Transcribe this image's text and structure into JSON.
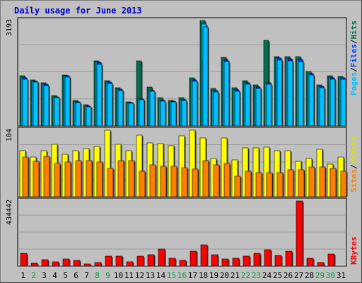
{
  "title": "Daily usage for June 2013",
  "colors": {
    "hits": "#007050",
    "files": "#00c0ff",
    "pages": "#0040ff",
    "visits": "#ffff00",
    "sites": "#ff8000",
    "kbytes": "#ff0000",
    "panel": "#c0c0c0",
    "weekend_label": "#00a040",
    "weekday_label": "#000000"
  },
  "legends": {
    "top": {
      "pages": "Pages",
      "files": "Files",
      "hits": "Hits",
      "sep": "/"
    },
    "mid": {
      "sites": "Sites",
      "visits": "Visits",
      "sep": "/"
    },
    "bottom": {
      "kbytes": "KBytes"
    }
  },
  "chart_data": [
    {
      "type": "bar",
      "panel": "hits-files-pages",
      "ymax_label": "3193",
      "ylim": [
        0,
        3193
      ],
      "categories": [
        "1",
        "2",
        "3",
        "4",
        "5",
        "6",
        "7",
        "8",
        "9",
        "10",
        "11",
        "12",
        "13",
        "14",
        "15",
        "16",
        "17",
        "18",
        "19",
        "20",
        "21",
        "22",
        "23",
        "24",
        "25",
        "26",
        "27",
        "28",
        "29",
        "30",
        "31"
      ],
      "weekend": [
        false,
        true,
        false,
        false,
        false,
        false,
        false,
        true,
        true,
        false,
        false,
        false,
        false,
        false,
        true,
        true,
        false,
        false,
        false,
        false,
        false,
        true,
        true,
        false,
        false,
        false,
        false,
        false,
        true,
        true,
        false
      ],
      "series": [
        {
          "name": "Hits",
          "values": [
            1520,
            1400,
            1310,
            930,
            1550,
            770,
            650,
            1970,
            1380,
            1160,
            730,
            1970,
            1180,
            860,
            780,
            850,
            1460,
            3193,
            1140,
            2070,
            1150,
            1380,
            1250,
            2590,
            2090,
            2100,
            2100,
            1640,
            1250,
            1520,
            1510
          ]
        },
        {
          "name": "Files",
          "values": [
            1460,
            1360,
            1260,
            880,
            1520,
            720,
            600,
            1920,
            1330,
            1110,
            700,
            820,
            1080,
            780,
            750,
            800,
            1400,
            3090,
            1070,
            2000,
            1090,
            1310,
            1180,
            1310,
            2050,
            2040,
            2010,
            1590,
            1200,
            1460,
            1460
          ]
        },
        {
          "name": "Pages",
          "values": [
            1460,
            1360,
            1260,
            880,
            1520,
            720,
            600,
            1920,
            1330,
            1110,
            700,
            820,
            1080,
            780,
            750,
            800,
            1400,
            2000,
            1070,
            2000,
            1090,
            1310,
            1180,
            1310,
            2050,
            2040,
            2010,
            1590,
            1200,
            1460,
            1460
          ]
        }
      ]
    },
    {
      "type": "bar",
      "panel": "visits-sites",
      "ymax_label": "104",
      "ylim": [
        0,
        104
      ],
      "series": [
        {
          "name": "Visits",
          "values": [
            72,
            62,
            72,
            82,
            66,
            72,
            75,
            78,
            104,
            82,
            72,
            96,
            84,
            83,
            80,
            95,
            104,
            92,
            60,
            92,
            58,
            76,
            76,
            77,
            72,
            72,
            55,
            60,
            74,
            51,
            62
          ]
        },
        {
          "name": "Sites",
          "values": [
            62,
            55,
            63,
            52,
            54,
            56,
            56,
            54,
            44,
            56,
            56,
            40,
            50,
            48,
            48,
            45,
            43,
            56,
            50,
            52,
            32,
            40,
            38,
            38,
            38,
            42,
            42,
            46,
            46,
            44,
            40
          ]
        }
      ]
    },
    {
      "type": "bar",
      "panel": "kbytes",
      "ymax_label": "434442",
      "ylim": [
        0,
        434442
      ],
      "series": [
        {
          "name": "KBytes",
          "values": [
            84000,
            20000,
            42000,
            30000,
            47000,
            40000,
            14000,
            25000,
            66000,
            68000,
            28000,
            68000,
            76000,
            114000,
            50000,
            40000,
            97000,
            140000,
            76000,
            48000,
            50000,
            68000,
            86000,
            110000,
            72000,
            100000,
            434442,
            50000,
            24000,
            80000,
            0
          ]
        }
      ]
    }
  ]
}
